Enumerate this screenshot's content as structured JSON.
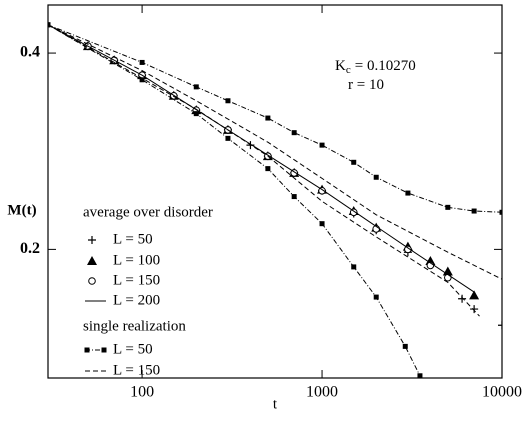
{
  "chart_data": {
    "type": "line",
    "x_label": "t",
    "y_label": "M(t)",
    "log_x": true,
    "log_y": true,
    "xlim": [
      30,
      10000
    ],
    "ylim": [
      0.127,
      0.474
    ],
    "xticks": [
      100,
      1000,
      10000
    ],
    "yticks": [
      0.2,
      0.4
    ],
    "annotation_kc": {
      "symbol": "K",
      "subscript": "c",
      "text": "= 0.10270"
    },
    "annotation_r": "r = 10",
    "groups": [
      {
        "title": "average over disorder",
        "series": [
          {
            "name": "L = 50",
            "style": "plus",
            "x": [
              50,
              70,
              100,
              150,
              200,
              300,
              400,
              500,
              700,
              1000,
              1500,
              2000,
              3000,
              6000,
              7000,
              10000
            ],
            "values": [
              0.41,
              0.39,
              0.37,
              0.344,
              0.327,
              0.305,
              0.289,
              0.278,
              0.262,
              0.246,
              0.227,
              0.214,
              0.198,
              0.168,
              0.162,
              0.153
            ]
          },
          {
            "name": "L = 100",
            "style": "triangle",
            "x": [
              50,
              70,
              100,
              150,
              200,
              300,
              500,
              700,
              1000,
              1500,
              2000,
              3000,
              4000,
              5000,
              7000
            ],
            "values": [
              0.41,
              0.39,
              0.37,
              0.344,
              0.327,
              0.305,
              0.278,
              0.262,
              0.247,
              0.229,
              0.216,
              0.202,
              0.192,
              0.185,
              0.17
            ]
          },
          {
            "name": "L = 150",
            "style": "circle",
            "x": [
              50,
              70,
              100,
              150,
              200,
              300,
              500,
              700,
              1000,
              1500,
              2000,
              3000,
              4000,
              5000
            ],
            "values": [
              0.41,
              0.39,
              0.37,
              0.344,
              0.327,
              0.305,
              0.278,
              0.262,
              0.246,
              0.228,
              0.215,
              0.2,
              0.189,
              0.181
            ]
          },
          {
            "name": "L = 200",
            "style": "solid",
            "x": [
              30,
              100,
              300,
              1000,
              3000,
              7000
            ],
            "values": [
              0.442,
              0.37,
              0.305,
              0.247,
              0.201,
              0.172
            ]
          }
        ]
      },
      {
        "title": "single realization",
        "series": [
          {
            "name": "L = 50",
            "style": "square-dashdot",
            "curves": [
              {
                "x": [
                  30,
                  100,
                  200,
                  300,
                  500,
                  700,
                  1000,
                  1500,
                  2000,
                  3000,
                  5000,
                  7000,
                  10000
                ],
                "values": [
                  0.442,
                  0.387,
                  0.355,
                  0.338,
                  0.318,
                  0.302,
                  0.289,
                  0.272,
                  0.258,
                  0.244,
                  0.232,
                  0.229,
                  0.228
                ]
              },
              {
                "x": [
                  30,
                  100,
                  200,
                  300,
                  500,
                  700,
                  1000,
                  1500,
                  2000,
                  2900,
                  3500
                ],
                "values": [
                  0.442,
                  0.364,
                  0.323,
                  0.296,
                  0.266,
                  0.241,
                  0.219,
                  0.188,
                  0.169,
                  0.142,
                  0.128
                ]
              }
            ]
          },
          {
            "name": "L = 150",
            "style": "dashed",
            "curves": [
              {
                "x": [
                  30,
                  100,
                  200,
                  500,
                  1000,
                  2000,
                  5000,
                  10000
                ],
                "values": [
                  0.442,
                  0.376,
                  0.338,
                  0.292,
                  0.257,
                  0.226,
                  0.198,
                  0.18
                ]
              },
              {
                "x": [
                  30,
                  100,
                  200,
                  500,
                  1000,
                  2000,
                  5000,
                  7500
                ],
                "values": [
                  0.442,
                  0.366,
                  0.328,
                  0.278,
                  0.237,
                  0.209,
                  0.178,
                  0.158
                ]
              }
            ]
          }
        ]
      }
    ]
  }
}
